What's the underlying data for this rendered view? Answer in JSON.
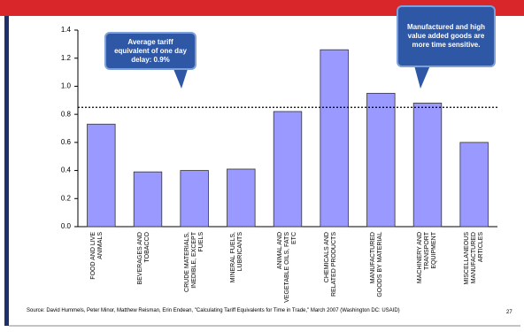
{
  "chart_data": {
    "type": "bar",
    "categories": [
      "FOOD AND LIVE ANIMALS",
      "BEVERAGES AND TOBACCO",
      "CRUDE MATERIALS, INEDIBLE, EXCEPT FUELS",
      "MINERAL FUELS, LUBRICANTS",
      "ANIMAL AND VEGETABLE OILS, FATS ETC",
      "CHEMICALS AND RELATED PRODUCTS",
      "MANUFACTURED GOODS BY MATERIAL",
      "MACHINERY AND TRANSPORT EQUIPMENT",
      "MISCELLANEOUS MANUFACTURED ARTICLES"
    ],
    "values": [
      0.73,
      0.39,
      0.4,
      0.41,
      0.82,
      1.26,
      0.95,
      0.88,
      0.6
    ],
    "color": "#9999ff",
    "ylim": [
      0,
      1.4
    ],
    "yticks": [
      {
        "value": 0,
        "label": "0.0"
      },
      0.2,
      0.4,
      0.6,
      0.8,
      {
        "value": 1,
        "label": "1.0"
      },
      1.2,
      1.4
    ],
    "reference_line": 0.85,
    "annotations": [
      "Average tariff equivalent of one day delay: 0.9%",
      "Manufactured and high value added goods are more time sensitive."
    ],
    "source": "Source: David Hummels, Peter Minor, Matthew Reisman, Erin Endean, \"Calculating Tariff Equivalents for Time in Trade,\" March 2007 (Washington DC: USAID)",
    "page_number": "27"
  }
}
